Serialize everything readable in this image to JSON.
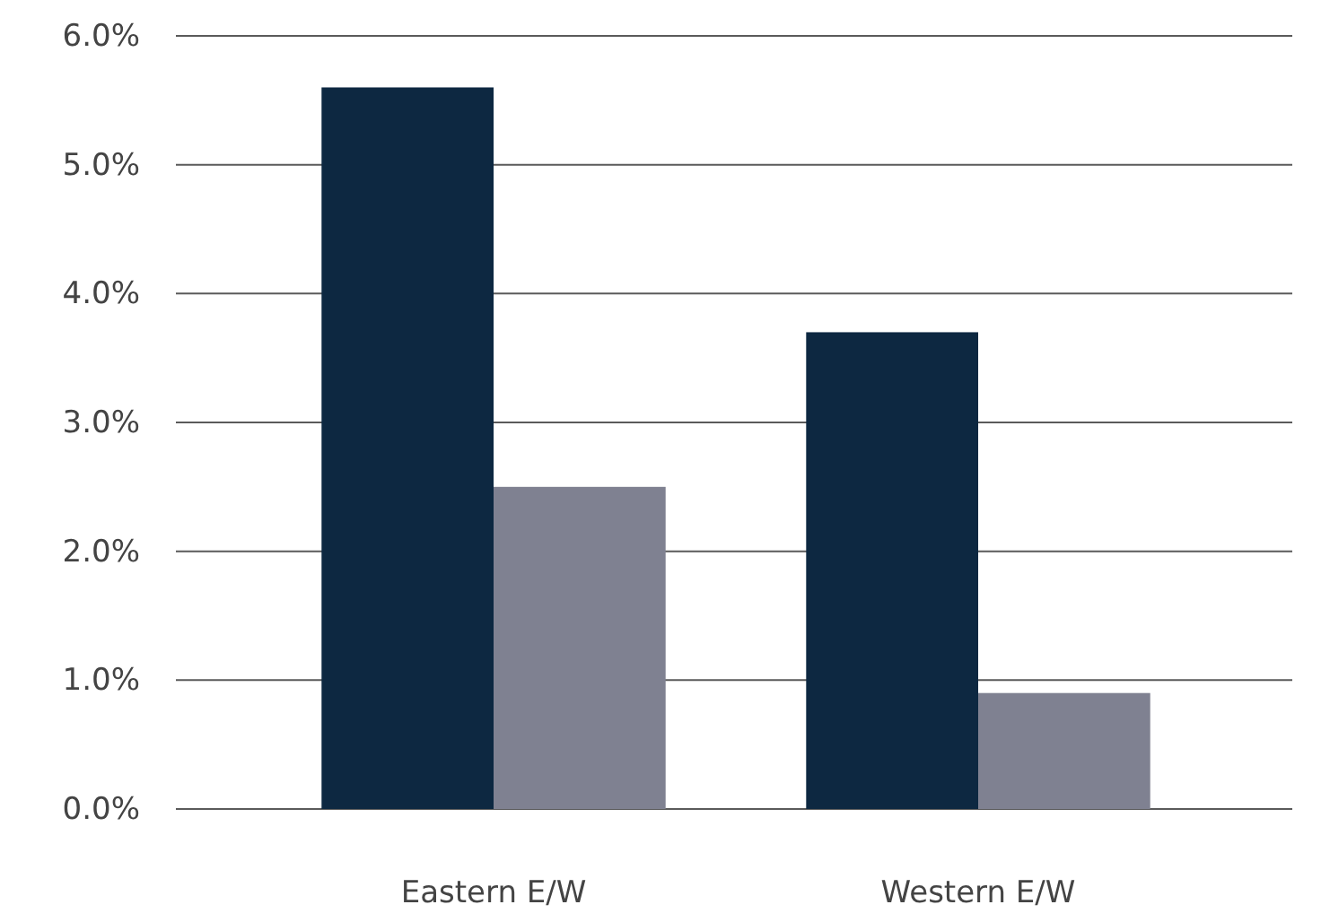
{
  "chart_data": {
    "type": "bar",
    "categories": [
      "Eastern E/W",
      "Western E/W"
    ],
    "series": [
      {
        "color": "#0d2841",
        "values": [
          5.6,
          3.7
        ]
      },
      {
        "color": "#7f8191",
        "values": [
          2.5,
          0.9
        ]
      }
    ],
    "ylim": [
      0,
      6
    ],
    "yticks": [
      {
        "value": 0,
        "label": "0.0%"
      },
      {
        "value": 1,
        "label": "1.0%"
      },
      {
        "value": 2,
        "label": "2.0%"
      },
      {
        "value": 3,
        "label": "3.0%"
      },
      {
        "value": 4,
        "label": "4.0%"
      },
      {
        "value": 5,
        "label": "5.0%"
      },
      {
        "value": 6,
        "label": "6.0%"
      }
    ],
    "grid": "y"
  }
}
